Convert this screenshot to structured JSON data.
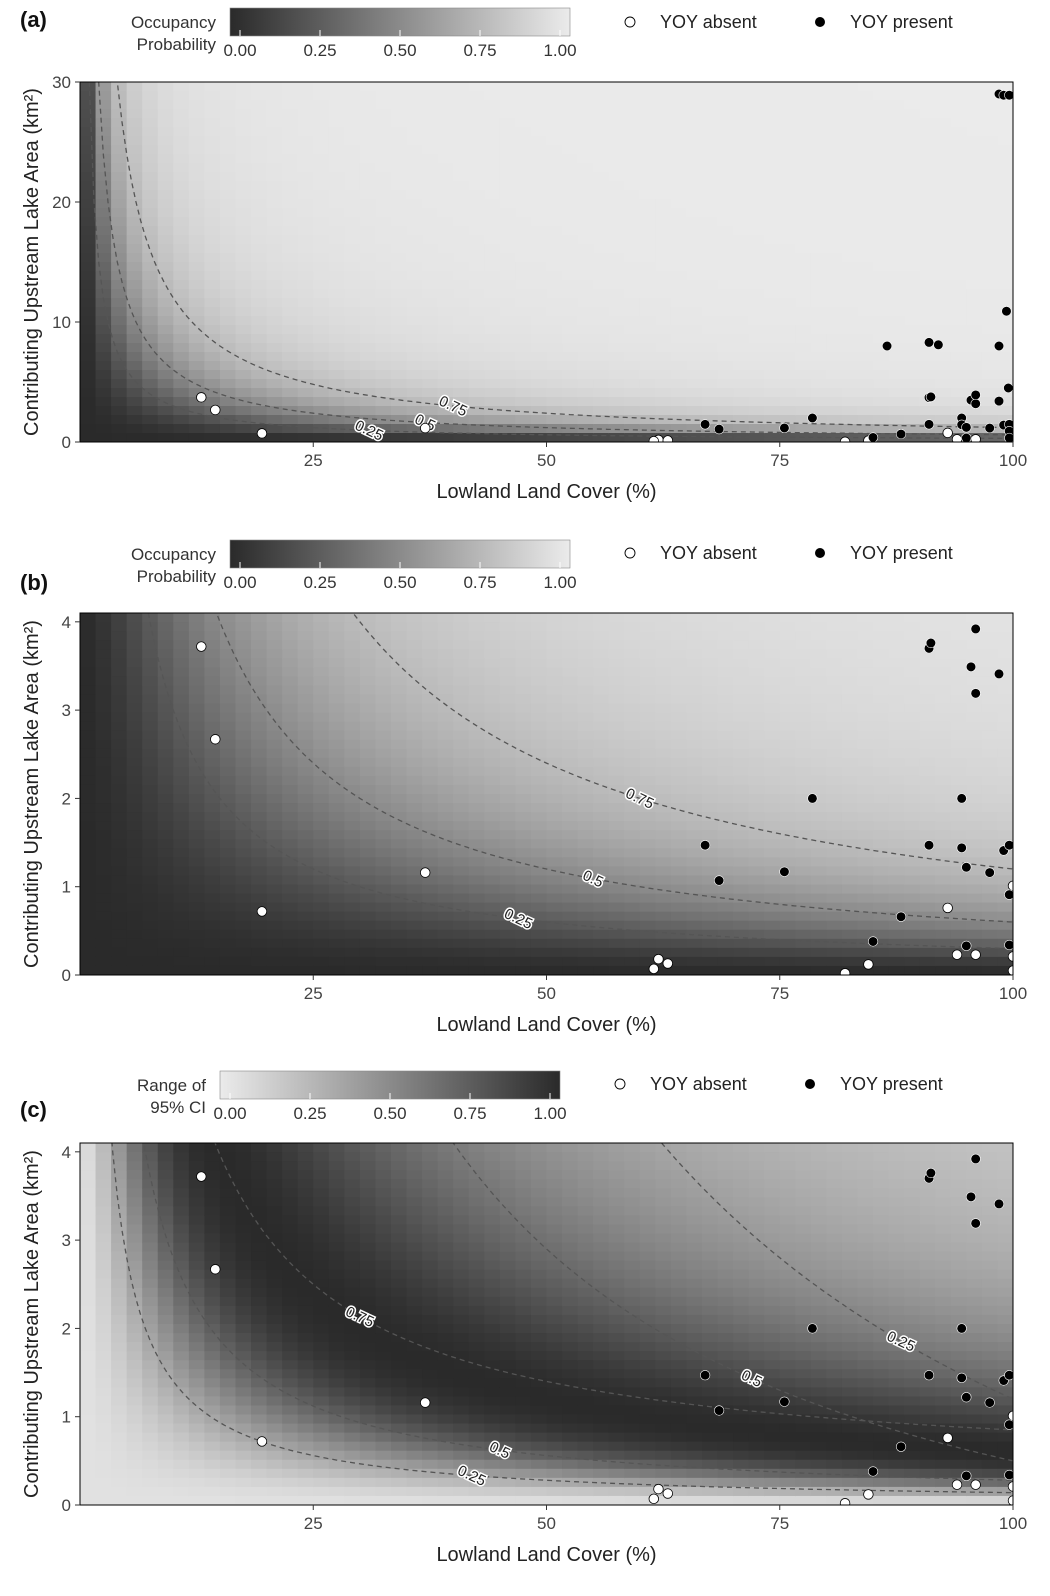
{
  "colors": {
    "dark": "#2a2a2a",
    "light": "#ebebeb",
    "absent_fill": "#ffffff",
    "present_fill": "#000000",
    "contour": "#555555"
  },
  "chart_data": [
    {
      "panel": "(a)",
      "type": "heatmap",
      "title": "",
      "xlabel": "Lowland Land Cover (%)",
      "ylabel": "Contributing Upstream Lake Area (km²)",
      "xlim": [
        0,
        100
      ],
      "ylim": [
        0,
        30
      ],
      "xticks": [
        25,
        50,
        75,
        100
      ],
      "yticks": [
        0,
        10,
        20,
        30
      ],
      "grid": false,
      "colorbar": {
        "title": [
          "Occupancy",
          "Probability"
        ],
        "ticks": [
          "0.00",
          "0.25",
          "0.50",
          "0.75",
          "1.00"
        ],
        "reversed": false
      },
      "legend": {
        "position": "top-right",
        "entries": [
          "YOY absent",
          "YOY present"
        ]
      },
      "surface": "occupancy",
      "contours": [
        {
          "label": "0.25",
          "level": 0.25,
          "label_x": 31
        },
        {
          "label": "0.5",
          "level": 0.5,
          "label_x": 37
        },
        {
          "label": "0.75",
          "level": 0.75,
          "label_x": 40
        }
      ]
    },
    {
      "panel": "(b)",
      "type": "heatmap",
      "title": "",
      "xlabel": "Lowland Land Cover (%)",
      "ylabel": "Contributing Upstream Lake Area (km²)",
      "xlim": [
        0,
        100
      ],
      "ylim": [
        0,
        4.1
      ],
      "xticks": [
        25,
        50,
        75,
        100
      ],
      "yticks": [
        0,
        1,
        2,
        3,
        4
      ],
      "grid": false,
      "colorbar": {
        "title": [
          "Occupancy",
          "Probability"
        ],
        "ticks": [
          "0.00",
          "0.25",
          "0.50",
          "0.75",
          "1.00"
        ],
        "reversed": false
      },
      "legend": {
        "position": "top-right",
        "entries": [
          "YOY absent",
          "YOY present"
        ]
      },
      "surface": "occupancy",
      "contours": [
        {
          "label": "0.25",
          "level": 0.25,
          "label_x": 47
        },
        {
          "label": "0.5",
          "level": 0.5,
          "label_x": 55
        },
        {
          "label": "0.75",
          "level": 0.75,
          "label_x": 60
        }
      ]
    },
    {
      "panel": "(c)",
      "type": "heatmap",
      "title": "",
      "xlabel": "Lowland Land Cover (%)",
      "ylabel": "Contributing Upstream Lake Area (km²)",
      "xlim": [
        0,
        100
      ],
      "ylim": [
        0,
        4.1
      ],
      "xticks": [
        25,
        50,
        75,
        100
      ],
      "yticks": [
        0,
        1,
        2,
        3,
        4
      ],
      "grid": false,
      "colorbar": {
        "title": [
          "Range of",
          "95% CI"
        ],
        "ticks": [
          "0.00",
          "0.25",
          "0.50",
          "0.75",
          "1.00"
        ],
        "reversed": true
      },
      "legend": {
        "position": "top-right",
        "entries": [
          "YOY absent",
          "YOY present"
        ]
      },
      "surface": "ci_range",
      "contours": [
        {
          "label": "0.25",
          "level": 0.25,
          "label_x": 42
        },
        {
          "label": "0.5",
          "level": 0.5,
          "label_x": 45
        },
        {
          "label": "0.75",
          "level": 0.75,
          "label_x": 30
        },
        {
          "label": "0.5",
          "level": 0.5,
          "label_x": 72
        },
        {
          "label": "0.25",
          "level": 0.25,
          "label_x": 88
        }
      ]
    }
  ],
  "points": {
    "absent": [
      {
        "x": 13,
        "y": 3.72
      },
      {
        "x": 14.5,
        "y": 2.67
      },
      {
        "x": 19.5,
        "y": 0.72
      },
      {
        "x": 37,
        "y": 1.16
      },
      {
        "x": 62,
        "y": 0.18
      },
      {
        "x": 63,
        "y": 0.13
      },
      {
        "x": 61.5,
        "y": 0.07
      },
      {
        "x": 82,
        "y": 0.02
      },
      {
        "x": 84.5,
        "y": 0.12
      },
      {
        "x": 93,
        "y": 0.76
      },
      {
        "x": 94,
        "y": 0.23
      },
      {
        "x": 96,
        "y": 0.23
      },
      {
        "x": 100,
        "y": 1.01
      },
      {
        "x": 100,
        "y": 0.21
      },
      {
        "x": 100,
        "y": 0.05
      }
    ],
    "present": [
      {
        "x": 67,
        "y": 1.47
      },
      {
        "x": 68.5,
        "y": 1.07
      },
      {
        "x": 75.5,
        "y": 1.17
      },
      {
        "x": 78.5,
        "y": 2.0
      },
      {
        "x": 85,
        "y": 0.38
      },
      {
        "x": 88,
        "y": 0.66
      },
      {
        "x": 91,
        "y": 3.7
      },
      {
        "x": 91.2,
        "y": 3.76
      },
      {
        "x": 91,
        "y": 1.47
      },
      {
        "x": 94.5,
        "y": 2.0
      },
      {
        "x": 94.5,
        "y": 1.44
      },
      {
        "x": 95,
        "y": 1.22
      },
      {
        "x": 95,
        "y": 0.33
      },
      {
        "x": 95.5,
        "y": 3.49
      },
      {
        "x": 96,
        "y": 3.19
      },
      {
        "x": 96,
        "y": 3.92
      },
      {
        "x": 97.5,
        "y": 1.16
      },
      {
        "x": 98.5,
        "y": 3.41
      },
      {
        "x": 99,
        "y": 1.41
      },
      {
        "x": 100,
        "y": 1.47
      },
      {
        "x": 100,
        "y": 0.91
      },
      {
        "x": 100,
        "y": 0.34
      },
      {
        "x": 98.5,
        "y": 29.0
      },
      {
        "x": 99,
        "y": 28.9
      },
      {
        "x": 100,
        "y": 28.9
      },
      {
        "x": 99.3,
        "y": 10.9
      },
      {
        "x": 91,
        "y": 8.3
      },
      {
        "x": 92,
        "y": 8.1
      },
      {
        "x": 86.5,
        "y": 8.0
      },
      {
        "x": 98.5,
        "y": 8.0
      },
      {
        "x": 99.5,
        "y": 4.5
      }
    ]
  }
}
